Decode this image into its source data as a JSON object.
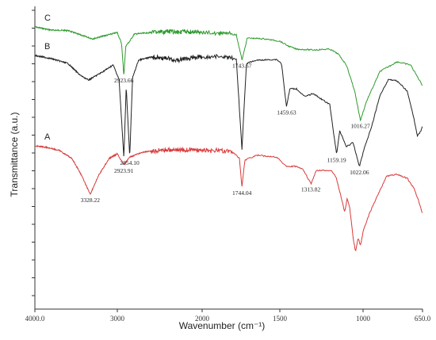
{
  "chart_data": {
    "type": "line",
    "xlabel": "Wavenumber (cm⁻¹)",
    "ylabel": "Transmittance (a.u.)",
    "xlim": [
      4000,
      650
    ],
    "x_axis_reversed": true,
    "x_tick_labels": [
      "4000.0",
      "3000",
      "2000",
      "1500",
      "1000",
      "650.0"
    ],
    "x_tick_values": [
      4000,
      3000,
      2000,
      1500,
      1000,
      650
    ],
    "y_ticks_unlabeled": true,
    "grid": false,
    "legend": "none",
    "series": [
      {
        "name": "C",
        "color": "#2e9a2e",
        "points": [
          [
            4000,
            34
          ],
          [
            3800,
            38
          ],
          [
            3600,
            38.5
          ],
          [
            3450,
            44
          ],
          [
            3300,
            49
          ],
          [
            3150,
            45
          ],
          [
            3000,
            41
          ],
          [
            2950,
            55
          ],
          [
            2923,
            95
          ],
          [
            2900,
            58
          ],
          [
            2854,
            52
          ],
          [
            2800,
            43
          ],
          [
            2600,
            41
          ],
          [
            2400,
            40
          ],
          [
            2200,
            40
          ],
          [
            2000,
            41
          ],
          [
            1850,
            42
          ],
          [
            1780,
            44
          ],
          [
            1743,
            76
          ],
          [
            1710,
            48
          ],
          [
            1600,
            49
          ],
          [
            1500,
            52
          ],
          [
            1450,
            58
          ],
          [
            1400,
            62
          ],
          [
            1300,
            63
          ],
          [
            1200,
            62
          ],
          [
            1150,
            68
          ],
          [
            1100,
            82
          ],
          [
            1050,
            115
          ],
          [
            1016,
            152
          ],
          [
            980,
            128
          ],
          [
            900,
            90
          ],
          [
            800,
            78
          ],
          [
            720,
            82
          ],
          [
            650,
            108
          ]
        ],
        "peaks": [
          {
            "x": 2923.66,
            "label": "2923.66"
          },
          {
            "x": 1743.67,
            "label": "1743.67"
          },
          {
            "x": 1016.27,
            "label": "1016.27"
          }
        ]
      },
      {
        "name": "B",
        "color": "#222222",
        "points": [
          [
            4000,
            70
          ],
          [
            3800,
            74
          ],
          [
            3600,
            80
          ],
          [
            3450,
            95
          ],
          [
            3350,
            101
          ],
          [
            3200,
            92
          ],
          [
            3050,
            82
          ],
          [
            2980,
            100
          ],
          [
            2923,
            198
          ],
          [
            2895,
            110
          ],
          [
            2854,
            198
          ],
          [
            2820,
            98
          ],
          [
            2750,
            76
          ],
          [
            2600,
            72
          ],
          [
            2400,
            74
          ],
          [
            2300,
            76
          ],
          [
            2200,
            74
          ],
          [
            2000,
            72
          ],
          [
            1850,
            72
          ],
          [
            1780,
            75
          ],
          [
            1744,
            188
          ],
          [
            1715,
            80
          ],
          [
            1650,
            76
          ],
          [
            1520,
            75
          ],
          [
            1490,
            80
          ],
          [
            1460,
            135
          ],
          [
            1440,
            112
          ],
          [
            1400,
            112
          ],
          [
            1350,
            122
          ],
          [
            1300,
            118
          ],
          [
            1250,
            125
          ],
          [
            1200,
            132
          ],
          [
            1159,
            195
          ],
          [
            1140,
            165
          ],
          [
            1100,
            185
          ],
          [
            1060,
            180
          ],
          [
            1022,
            210
          ],
          [
            990,
            185
          ],
          [
            950,
            160
          ],
          [
            900,
            120
          ],
          [
            850,
            100
          ],
          [
            800,
            102
          ],
          [
            740,
            115
          ],
          [
            700,
            150
          ],
          [
            680,
            172
          ],
          [
            660,
            165
          ],
          [
            650,
            158
          ]
        ],
        "peaks": [
          {
            "x": 2854.1,
            "label": "2854.10"
          },
          {
            "x": 1459.63,
            "label": "1459.63"
          },
          {
            "x": 1159.19,
            "label": "1159.19"
          },
          {
            "x": 1022.06,
            "label": "1022.06"
          }
        ]
      },
      {
        "name": "A",
        "color": "#d93a3a",
        "points": [
          [
            4000,
            184
          ],
          [
            3850,
            186
          ],
          [
            3700,
            190
          ],
          [
            3550,
            200
          ],
          [
            3450,
            218
          ],
          [
            3328,
            245
          ],
          [
            3230,
            222
          ],
          [
            3100,
            200
          ],
          [
            3000,
            194
          ],
          [
            2923,
            208
          ],
          [
            2850,
            198
          ],
          [
            2700,
            192
          ],
          [
            2500,
            190
          ],
          [
            2300,
            189
          ],
          [
            2100,
            189
          ],
          [
            2000,
            190
          ],
          [
            1900,
            190
          ],
          [
            1800,
            192
          ],
          [
            1760,
            200
          ],
          [
            1744,
            236
          ],
          [
            1725,
            202
          ],
          [
            1650,
            196
          ],
          [
            1520,
            198
          ],
          [
            1460,
            210
          ],
          [
            1400,
            210
          ],
          [
            1360,
            214
          ],
          [
            1313,
            232
          ],
          [
            1280,
            215
          ],
          [
            1230,
            215
          ],
          [
            1190,
            215
          ],
          [
            1160,
            225
          ],
          [
            1130,
            250
          ],
          [
            1110,
            268
          ],
          [
            1095,
            250
          ],
          [
            1080,
            262
          ],
          [
            1060,
            300
          ],
          [
            1045,
            318
          ],
          [
            1030,
            300
          ],
          [
            1015,
            310
          ],
          [
            1000,
            292
          ],
          [
            960,
            268
          ],
          [
            900,
            240
          ],
          [
            860,
            222
          ],
          [
            800,
            220
          ],
          [
            740,
            225
          ],
          [
            700,
            238
          ],
          [
            670,
            255
          ],
          [
            650,
            270
          ]
        ],
        "peaks": [
          {
            "x": 3328.22,
            "label": "3328.22"
          },
          {
            "x": 2923.91,
            "label": "2923.91"
          },
          {
            "x": 1744.04,
            "label": "1744.04"
          },
          {
            "x": 1313.82,
            "label": "1313.82"
          }
        ]
      }
    ]
  }
}
